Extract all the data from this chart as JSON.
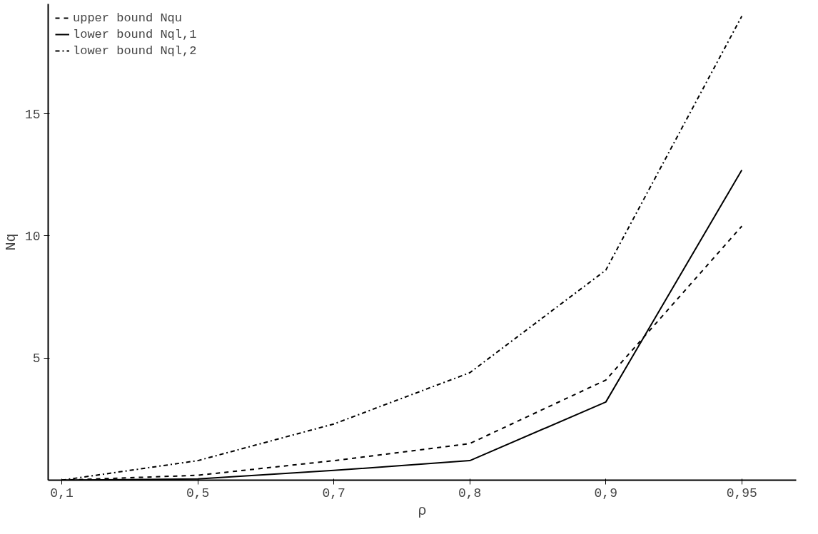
{
  "chart_data": {
    "type": "line",
    "xlabel": "ρ",
    "ylabel": "Nq",
    "categories": [
      "0,1",
      "0,5",
      "0,7",
      "0,8",
      "0,9",
      "0,95"
    ],
    "series": [
      {
        "name": "upper bound Nqu",
        "color": "#000000",
        "line_style": "dashed",
        "values": [
          0,
          0.2,
          0.8,
          1.5,
          4.1,
          10.4
        ]
      },
      {
        "name": "lower bound Nql,1",
        "color": "#000000",
        "line_style": "solid",
        "values": [
          0,
          0.05,
          0.4,
          0.8,
          3.2,
          12.7
        ]
      },
      {
        "name": "lower bound Nql,2",
        "color": "#000000",
        "line_style": "dashdot",
        "values": [
          0,
          0.8,
          2.3,
          4.4,
          8.6,
          19
        ]
      }
    ],
    "ylim": [
      0,
      19.5
    ],
    "yticks": [
      5,
      10,
      15
    ],
    "grid": false,
    "legend": "top left"
  }
}
